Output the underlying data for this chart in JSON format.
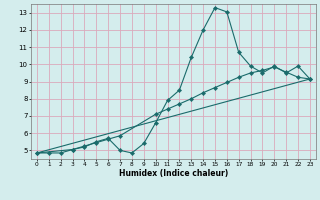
{
  "xlabel": "Humidex (Indice chaleur)",
  "xlim": [
    -0.5,
    23.5
  ],
  "ylim": [
    4.5,
    13.5
  ],
  "yticks": [
    5,
    6,
    7,
    8,
    9,
    10,
    11,
    12,
    13
  ],
  "xticks": [
    0,
    1,
    2,
    3,
    4,
    5,
    6,
    7,
    8,
    9,
    10,
    11,
    12,
    13,
    14,
    15,
    16,
    17,
    18,
    19,
    20,
    21,
    22,
    23
  ],
  "bg_color": "#d4eded",
  "grid_color": "#dbaabb",
  "line_color": "#1a6b6b",
  "line1_x": [
    0,
    1,
    2,
    3,
    4,
    5,
    6,
    7,
    8,
    9,
    10,
    11,
    12,
    13,
    14,
    15,
    16,
    17,
    18,
    19,
    20,
    21,
    22,
    23
  ],
  "line1_y": [
    4.85,
    4.85,
    4.85,
    5.05,
    5.2,
    5.5,
    5.7,
    5.0,
    4.85,
    5.4,
    6.6,
    7.9,
    8.5,
    10.4,
    12.0,
    13.3,
    13.05,
    10.7,
    9.9,
    9.5,
    9.9,
    9.5,
    9.9,
    9.15
  ],
  "line2_x": [
    0,
    3,
    4,
    5,
    6,
    7,
    10,
    11,
    12,
    13,
    14,
    15,
    16,
    17,
    18,
    19,
    20,
    21,
    22,
    23
  ],
  "line2_y": [
    4.85,
    5.05,
    5.25,
    5.45,
    5.65,
    5.85,
    7.1,
    7.4,
    7.7,
    8.0,
    8.35,
    8.65,
    8.95,
    9.25,
    9.5,
    9.65,
    9.85,
    9.55,
    9.25,
    9.15
  ],
  "line3_x": [
    0,
    23
  ],
  "line3_y": [
    4.85,
    9.15
  ]
}
